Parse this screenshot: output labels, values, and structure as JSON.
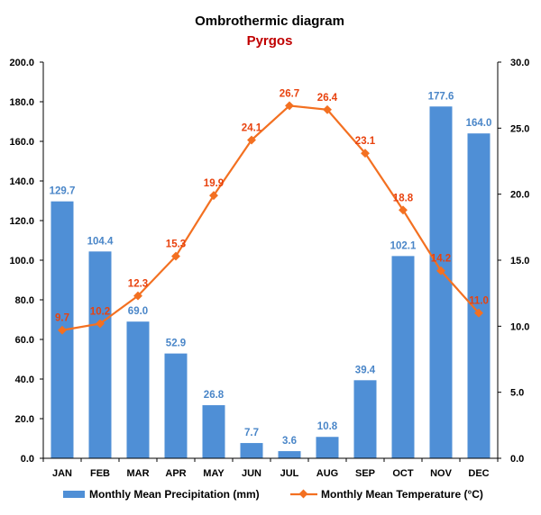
{
  "chart_data": {
    "type": "bar",
    "title": "Ombrothermic diagram",
    "subtitle": "Pyrgos",
    "categories": [
      "JAN",
      "FEB",
      "MAR",
      "APR",
      "MAY",
      "JUN",
      "JUL",
      "AUG",
      "SEP",
      "OCT",
      "NOV",
      "DEC"
    ],
    "series": [
      {
        "name": "Monthly Mean Precipitation (mm)",
        "type": "bar",
        "axis": "left",
        "color": "#4f8fd6",
        "values": [
          129.7,
          104.4,
          69.0,
          52.9,
          26.8,
          7.7,
          3.6,
          10.8,
          39.4,
          102.1,
          177.6,
          164.0
        ],
        "labels": [
          "129.7",
          "104.4",
          "69.0",
          "52.9",
          "26.8",
          "7.7",
          "3.6",
          "10.8",
          "39.4",
          "102.1",
          "177.6",
          "164.0"
        ]
      },
      {
        "name": "Monthly Mean Temperature (°C)",
        "type": "line",
        "axis": "right",
        "color": "#f37021",
        "values": [
          9.7,
          10.2,
          12.3,
          15.3,
          19.9,
          24.1,
          26.7,
          26.4,
          23.1,
          18.8,
          14.2,
          11.0
        ],
        "labels": [
          "9.7",
          "10.2",
          "12.3",
          "15.3",
          "19.9",
          "24.1",
          "26.7",
          "26.4",
          "23.1",
          "18.8",
          "14.2",
          "11.0"
        ]
      }
    ],
    "y_left": {
      "range": [
        0,
        200
      ],
      "ticks": [
        "0.0",
        "20.0",
        "40.0",
        "60.0",
        "80.0",
        "100.0",
        "120.0",
        "140.0",
        "160.0",
        "180.0",
        "200.0"
      ]
    },
    "y_right": {
      "range": [
        0,
        30
      ],
      "ticks": [
        "0.0",
        "5.0",
        "10.0",
        "15.0",
        "20.0",
        "25.0",
        "30.0"
      ]
    },
    "grid": false,
    "legend_position": "bottom"
  }
}
